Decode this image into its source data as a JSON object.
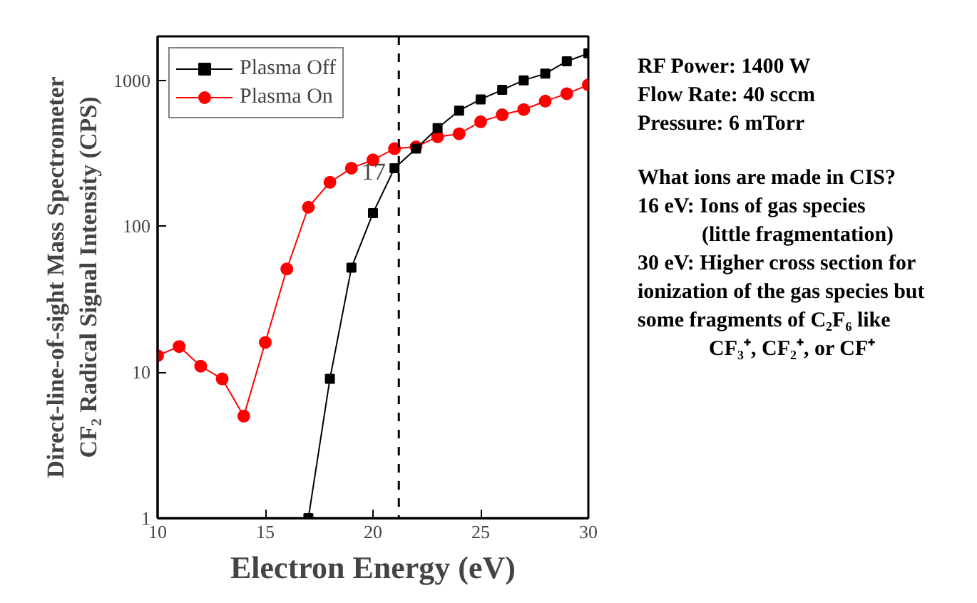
{
  "chart_data": {
    "type": "line",
    "xlabel": "Electron Energy (eV)",
    "ylabel": "Direct-line-of-sight Mass Spectrometer\nCF₂ Radical Signal Intensity (CPS)",
    "x": [
      10,
      11,
      12,
      13,
      14,
      15,
      16,
      17,
      18,
      19,
      20,
      21,
      22,
      23,
      24,
      25,
      26,
      27,
      28,
      29,
      30
    ],
    "series": [
      {
        "name": "Plasma Off",
        "color": "#000000",
        "marker": "square",
        "x": [
          17,
          18,
          19,
          20,
          21,
          22,
          23,
          24,
          25,
          26,
          27,
          28,
          29,
          30
        ],
        "values": [
          1,
          9,
          52,
          123,
          250,
          340,
          470,
          620,
          740,
          860,
          1000,
          1110,
          1350,
          1530
        ]
      },
      {
        "name": "Plasma On",
        "color": "#ff0000",
        "marker": "circle",
        "values": [
          13,
          15,
          11,
          9,
          5,
          16,
          51,
          135,
          200,
          250,
          285,
          340,
          350,
          410,
          430,
          520,
          580,
          630,
          720,
          810,
          930
        ]
      }
    ],
    "log": "y",
    "xlim": [
      10,
      30
    ],
    "xticks": [
      10,
      15,
      20,
      25,
      30
    ],
    "ylim": [
      1,
      2000
    ],
    "yticks": [
      1,
      10,
      100,
      1000
    ],
    "ref_lines": [
      {
        "axis": "x",
        "value": 21.2,
        "color": "#000000",
        "line_style": "dashed"
      }
    ],
    "legend": "top left",
    "grid": false,
    "annotations": [
      {
        "text": "17",
        "x": 20.6,
        "y": 240
      },
      "RF Power: 1400 W",
      "Flow Rate: 40 sccm",
      "Pressure: 6 mTorr",
      "What ions are made in CIS?",
      "16 eV:  Ions of gas species",
      "(little fragmentation)",
      "30 eV: Higher cross section for",
      "ionization of the gas species but",
      "some fragments of C₂F₆ like",
      "CF₃⁺, CF₂⁺, or CF⁺"
    ]
  }
}
